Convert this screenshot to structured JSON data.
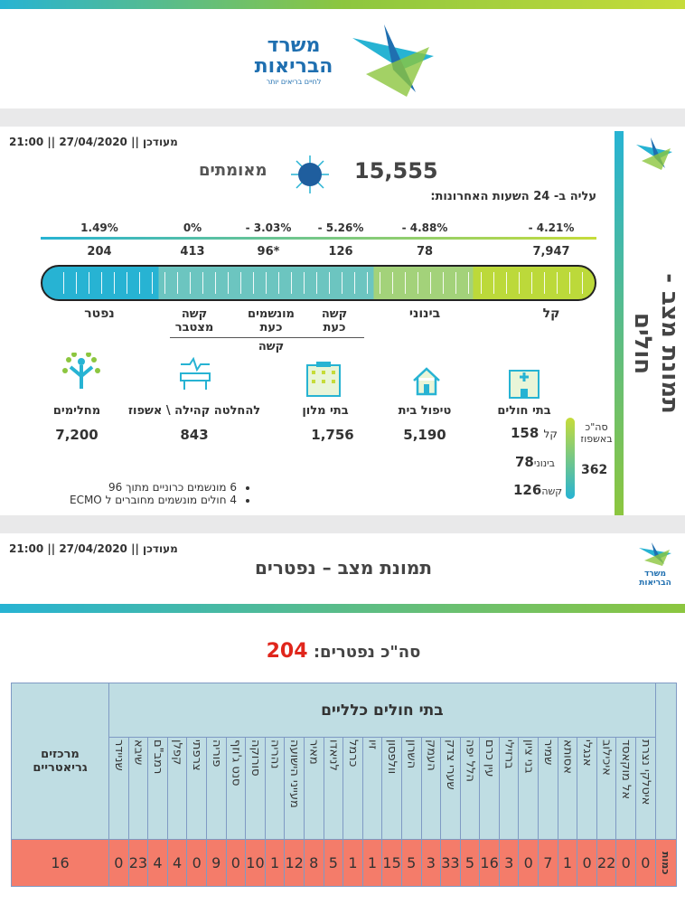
{
  "header": {
    "ministry_line1": "משרד",
    "ministry_line2": "הבריאות",
    "slogan": "לחיים בריאים יותר"
  },
  "patients": {
    "side_title": "תמונת מצב - חולים",
    "updated": "מעודכן || 27/04/2020 || 21:00",
    "confirmed_value": "15,555",
    "confirmed_label": "מאומתים",
    "rise_label": "עליה ב- 24 השעות האחרונות:",
    "scale": [
      {
        "label": "קל",
        "pct": "- 4.21%",
        "value": "7,947"
      },
      {
        "label": "בינוני",
        "pct": "- 4.88%",
        "value": "78"
      },
      {
        "label": "קשה כעת",
        "pct": "- 5.26%",
        "value": "126"
      },
      {
        "label": "מונשמים כעת",
        "pct": "- 3.03%",
        "value": "96*"
      },
      {
        "label": "קשה מצטבר",
        "pct": "0%",
        "value": "413"
      },
      {
        "label": "נפטר",
        "pct": "1.49%",
        "value": "204"
      }
    ],
    "severe_group": "קשה",
    "locations": [
      {
        "label": "בתי חולים",
        "icon": "hospital-icon"
      },
      {
        "label": "טיפול בית",
        "value": "5,190",
        "icon": "house-icon"
      },
      {
        "label": "בתי מלון",
        "value": "1,756",
        "icon": "hotel-icon"
      },
      {
        "label": "להחלטה קהילה \\ אשפוז",
        "value": "843",
        "icon": "hospital-bed-icon"
      },
      {
        "label": "מחלימים",
        "value": "7,200",
        "icon": "recovered-person-icon"
      }
    ],
    "hospital_breakdown": {
      "total_label": "סה\"כ באשפוז",
      "total": "362",
      "mild_label": "קל",
      "mild": "158",
      "moderate_label": "בינוני",
      "moderate": "78",
      "severe_label": "קשה",
      "severe": "126"
    },
    "notes": [
      "6 מונשמים כרוניים מתוך 96",
      "4 חולים מונשמים מחוברים ל ECMO"
    ]
  },
  "deaths": {
    "updated": "מעודכן || 27/04/2020 || 21:00",
    "title": "תמונת מצב – נפטרים",
    "total_label": "סה\"כ נפטרים:",
    "total": "204",
    "group_header": "בתי חולים כלליים",
    "geriatric_header": "מרכזים גריאטריים",
    "row_label": "כמות",
    "hospitals": [
      "איטלקי נצרת",
      "אל מוקאסד",
      "איכילוב",
      "אנגלי",
      "אסותא",
      "שמיר",
      "בני ציון",
      "ברזילי",
      "עין כרם",
      "הלל יפה",
      "שערי צדק",
      "העמק",
      "השרון",
      "וולפסון",
      "זיו",
      "כרמל",
      "לניאדו",
      "מאיר",
      "מעייני הישועה",
      "נהריה",
      "סורוקה",
      "סנט ג'וזף",
      "פוריה",
      "צרפתי",
      "קפלן",
      "רמב\"ם",
      "שיבא",
      "שניידר"
    ],
    "values": [
      "0",
      "0",
      "22",
      "0",
      "1",
      "7",
      "0",
      "3",
      "16",
      "5",
      "33",
      "3",
      "5",
      "15",
      "1",
      "1",
      "5",
      "8",
      "12",
      "1",
      "10",
      "0",
      "9",
      "0",
      "4",
      "4",
      "23",
      "0"
    ],
    "geriatric_value": "16"
  },
  "colors": {
    "accent_blue": "#27b3d3",
    "accent_green": "#8cc63f",
    "total_red": "#e0261c",
    "row_red": "#f47c6a",
    "header_blue": "#bfdde3"
  }
}
